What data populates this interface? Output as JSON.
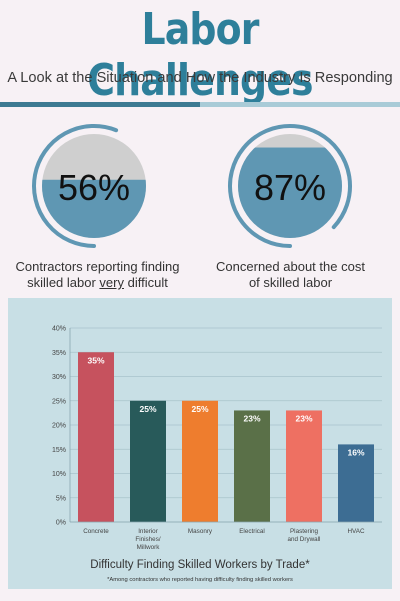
{
  "header": {
    "title": "Labor Challenges",
    "subtitle": "A Look at the Situation and How the Industry Is Responding"
  },
  "stats": [
    {
      "value": 56,
      "value_label": "56%",
      "caption_line1": "Contractors reporting finding",
      "caption_line2_pre": "skilled labor ",
      "caption_line2_em": "very",
      "caption_line2_post": " difficult"
    },
    {
      "value": 87,
      "value_label": "87%",
      "caption_line1": "Concerned about the cost",
      "caption_line2": "of skilled labor"
    }
  ],
  "colors": {
    "title": "#2e7f9a",
    "gauge_fill": "#5f97b3",
    "gauge_empty": "#cfcfcf",
    "panel": "#c8dfe5"
  },
  "chart_data": {
    "type": "bar",
    "title": "Difficulty Finding Skilled Workers by Trade*",
    "footnote": "*Among contractors who reported having difficulty finding skilled workers",
    "categories": [
      [
        "Concrete"
      ],
      [
        "Interior",
        "Finishes/",
        "Millwork"
      ],
      [
        "Masonry"
      ],
      [
        "Electrical"
      ],
      [
        "Plastering",
        "and Drywall"
      ],
      [
        "HVAC"
      ]
    ],
    "values": [
      35,
      25,
      25,
      23,
      23,
      16
    ],
    "value_labels": [
      "35%",
      "25%",
      "25%",
      "23%",
      "23%",
      "16%"
    ],
    "bar_colors": [
      "#c6525e",
      "#285a5a",
      "#ee7d2e",
      "#5a7048",
      "#ee7062",
      "#3d6d93"
    ],
    "ylim": [
      0,
      40
    ],
    "yticks": [
      "0%",
      "5%",
      "10%",
      "15%",
      "20%",
      "25%",
      "30%",
      "35%",
      "40%"
    ],
    "grid": true
  }
}
